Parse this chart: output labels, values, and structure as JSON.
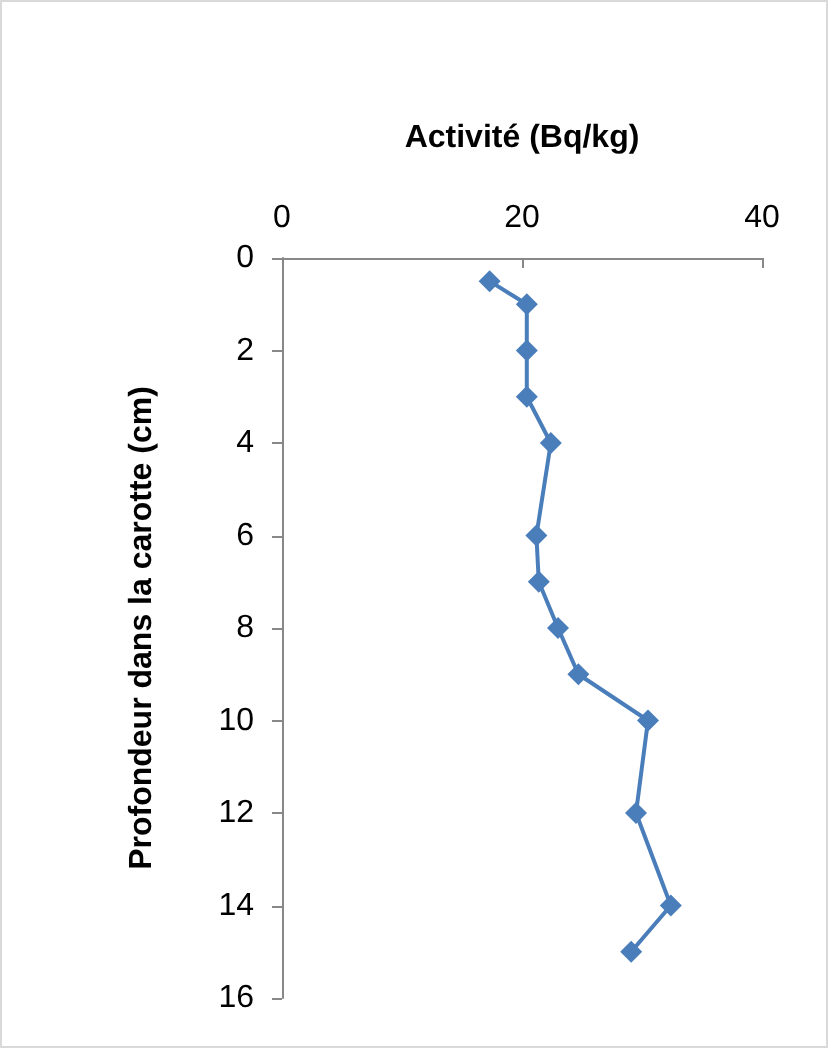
{
  "chart_data": {
    "type": "line",
    "xlabel": "Activité (Bq/kg)",
    "ylabel": "Profondeur dans la carotte (cm)",
    "x": [
      17.3,
      20.4,
      20.4,
      20.4,
      22.4,
      21.2,
      21.4,
      23,
      24.7,
      30.5,
      29.5,
      32.4,
      29.1
    ],
    "values": [
      0.5,
      1,
      2,
      3,
      4,
      6,
      7,
      8,
      9,
      10,
      12,
      14,
      15
    ],
    "color": "#4a7ebb",
    "marker": "diamond",
    "line_style": "solid",
    "xlim": [
      0,
      40
    ],
    "xticks": [
      0,
      20,
      40
    ],
    "ylim": [
      16,
      0
    ],
    "yticks": [
      0,
      2,
      4,
      6,
      8,
      10,
      12,
      14,
      16
    ],
    "grid": false
  }
}
